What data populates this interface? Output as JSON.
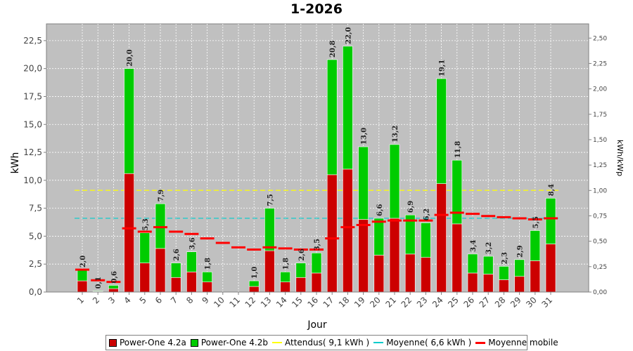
{
  "chart_data": {
    "type": "bar",
    "title": "1-2026",
    "xlabel": "Jour",
    "ylabel": "kWh",
    "y2label": "kWh/kWp",
    "ylim": [
      0,
      24
    ],
    "y2lim": [
      0,
      2.64
    ],
    "yticks": [
      "0,0",
      "2,5",
      "5,0",
      "7,5",
      "10,0",
      "12,5",
      "15,0",
      "17,5",
      "20,0",
      "22,5"
    ],
    "y2ticks": [
      "0,00",
      "0,25",
      "0,50",
      "0,75",
      "1,00",
      "1,25",
      "1,50",
      "1,75",
      "2,00",
      "2,25",
      "2,50"
    ],
    "categories": [
      "1",
      "2",
      "3",
      "4",
      "5",
      "6",
      "7",
      "8",
      "9",
      "10",
      "11",
      "12",
      "13",
      "14",
      "15",
      "16",
      "17",
      "18",
      "19",
      "20",
      "21",
      "22",
      "23",
      "24",
      "25",
      "26",
      "27",
      "28",
      "29",
      "30",
      "31"
    ],
    "total_labels": [
      "2,0",
      "0,1",
      "0,6",
      "20,0",
      "5,3",
      "7,9",
      "2,6",
      "3,6",
      "1,8",
      "",
      "",
      "1,0",
      "7,5",
      "1,8",
      "2,6",
      "3,5",
      "20,8",
      "22,0",
      "13,0",
      "6,6",
      "13,2",
      "6,9",
      "6,2",
      "19,1",
      "11,8",
      "3,4",
      "3,2",
      "2,3",
      "2,9",
      "5,5",
      "8,4"
    ],
    "series": [
      {
        "name": "Power-One 4.2a",
        "color": "#cc0000",
        "values": [
          1.0,
          0.05,
          0.3,
          10.6,
          2.6,
          3.9,
          1.3,
          1.8,
          0.9,
          0,
          0,
          0.5,
          3.7,
          0.9,
          1.3,
          1.7,
          10.5,
          11.0,
          6.5,
          3.3,
          6.6,
          3.4,
          3.1,
          9.7,
          6.1,
          1.7,
          1.6,
          1.1,
          1.4,
          2.8,
          4.3
        ]
      },
      {
        "name": "Power-One 4.2b",
        "color": "#00cc00",
        "values": [
          1.0,
          0.05,
          0.3,
          9.4,
          2.7,
          4.0,
          1.3,
          1.8,
          0.9,
          0,
          0,
          0.5,
          3.8,
          0.9,
          1.3,
          1.8,
          10.3,
          11.0,
          6.5,
          3.3,
          6.6,
          3.5,
          3.1,
          9.4,
          5.7,
          1.7,
          1.6,
          1.2,
          1.5,
          2.7,
          4.1
        ]
      }
    ],
    "reference_lines": [
      {
        "name": "Attendus( 9,1 kWh )",
        "value": 9.1,
        "color": "#ffff00"
      },
      {
        "name": "Moyenne( 6,6 kWh )",
        "value": 6.6,
        "color": "#00cccc"
      }
    ],
    "moving_average": {
      "name": "Moyenne mobile",
      "color": "#ff0000",
      "values": [
        2.0,
        1.05,
        0.9,
        5.7,
        5.4,
        5.8,
        5.4,
        5.2,
        4.8,
        4.4,
        4.0,
        3.8,
        4.0,
        3.9,
        3.8,
        3.8,
        4.8,
        5.8,
        6.0,
        6.3,
        6.4,
        6.4,
        6.4,
        6.9,
        7.1,
        7.0,
        6.8,
        6.7,
        6.6,
        6.5,
        6.6
      ]
    },
    "grid": true,
    "legend_position": "bottom",
    "plot_background": "#c0c0c0"
  }
}
